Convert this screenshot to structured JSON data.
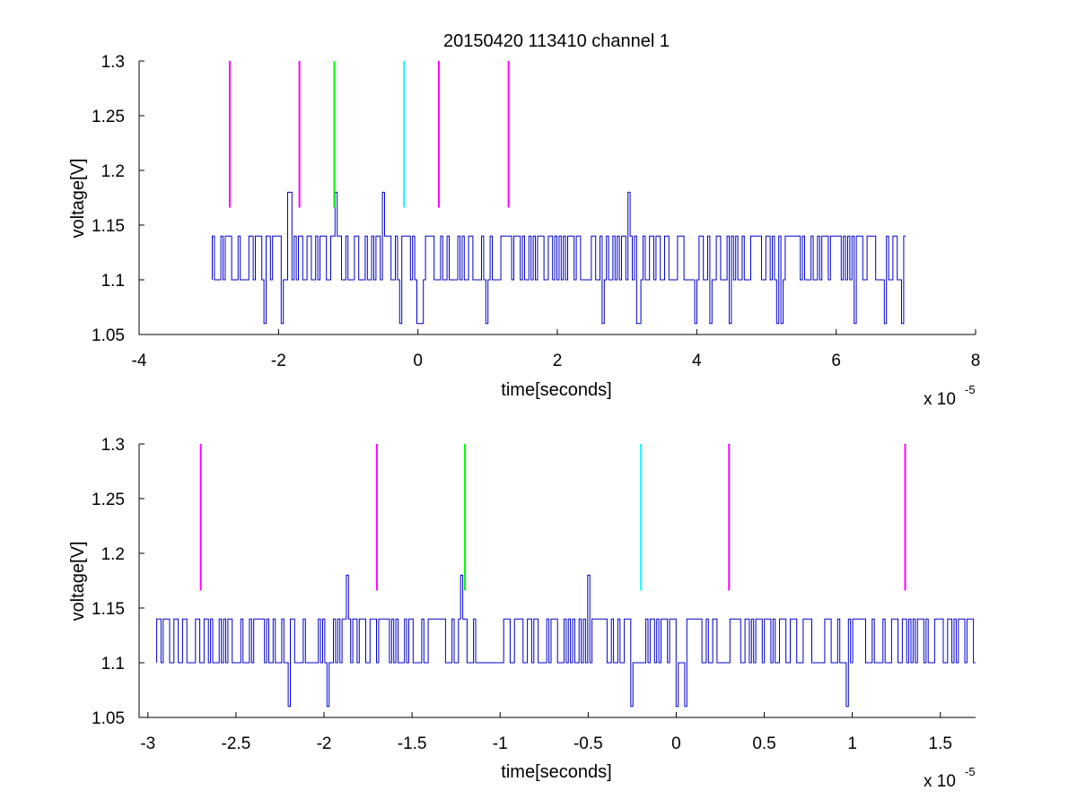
{
  "chart_data": [
    {
      "type": "line",
      "title": "20150420 113410 channel 1",
      "xlabel": "time[seconds]",
      "ylabel": "voltage[V]",
      "x_multiplier": "x 10",
      "x_exponent": "-5",
      "xlim": [
        -4,
        8
      ],
      "ylim": [
        1.05,
        1.3
      ],
      "xticks": [
        -4,
        -2,
        0,
        2,
        4,
        6,
        8
      ],
      "xtick_labels": [
        "-4",
        "-2",
        "0",
        "2",
        "4",
        "6",
        "8"
      ],
      "yticks": [
        1.05,
        1.1,
        1.15,
        1.2,
        1.25,
        1.3
      ],
      "ytick_labels": [
        "1.05",
        "1.1",
        "1.15",
        "1.2",
        "1.25",
        "1.3"
      ],
      "grid": false,
      "series": [
        {
          "color": "#0000cc",
          "x_range": [
            -2.95,
            7.0
          ],
          "levels": [
            1.06,
            1.1,
            1.14,
            1.18
          ],
          "spikes_up": [
            -1.85,
            -1.2,
            -0.5,
            3.02
          ],
          "dips": [
            -2.2,
            -1.97,
            -0.25,
            0.0,
            0.05,
            0.97,
            2.65,
            3.15,
            3.98,
            4.2,
            4.47,
            5.15,
            5.22,
            6.25,
            6.7,
            6.95
          ]
        }
      ],
      "markers": [
        {
          "x": -2.7,
          "y_range": [
            1.166,
            1.3
          ],
          "color": "#ff00ff"
        },
        {
          "x": -1.7,
          "y_range": [
            1.166,
            1.3
          ],
          "color": "#ff00ff"
        },
        {
          "x": -1.2,
          "y_range": [
            1.166,
            1.3
          ],
          "color": "#00ff00"
        },
        {
          "x": -0.2,
          "y_range": [
            1.166,
            1.3
          ],
          "color": "#00ffff"
        },
        {
          "x": 0.3,
          "y_range": [
            1.166,
            1.3
          ],
          "color": "#ff00ff"
        },
        {
          "x": 1.3,
          "y_range": [
            1.166,
            1.3
          ],
          "color": "#ff00ff"
        }
      ]
    },
    {
      "type": "line",
      "title": "",
      "xlabel": "time[seconds]",
      "ylabel": "voltage[V]",
      "x_multiplier": "x 10",
      "x_exponent": "-5",
      "xlim": [
        -3.05,
        1.7
      ],
      "ylim": [
        1.05,
        1.3
      ],
      "xticks": [
        -3,
        -2.5,
        -2,
        -1.5,
        -1,
        -0.5,
        0,
        0.5,
        1,
        1.5
      ],
      "xtick_labels": [
        "-3",
        "-2.5",
        "-2",
        "-1.5",
        "-1",
        "-0.5",
        "0",
        "0.5",
        "1",
        "1.5"
      ],
      "yticks": [
        1.05,
        1.1,
        1.15,
        1.2,
        1.25,
        1.3
      ],
      "ytick_labels": [
        "1.05",
        "1.1",
        "1.15",
        "1.2",
        "1.25",
        "1.3"
      ],
      "grid": false,
      "series": [
        {
          "color": "#0000cc",
          "x_range": [
            -2.95,
            1.7
          ],
          "levels": [
            1.06,
            1.1,
            1.14,
            1.18
          ],
          "spikes_up": [
            -1.87,
            -1.22,
            -0.5
          ],
          "dips": [
            -2.2,
            -1.98,
            -0.26,
            0.0,
            0.05,
            0.97
          ],
          "flat_segments": [
            [
              -1.15,
              -0.98
            ]
          ]
        }
      ],
      "markers": [
        {
          "x": -2.7,
          "y_range": [
            1.166,
            1.3
          ],
          "color": "#ff00ff"
        },
        {
          "x": -1.7,
          "y_range": [
            1.166,
            1.3
          ],
          "color": "#ff00ff"
        },
        {
          "x": -1.2,
          "y_range": [
            1.166,
            1.3
          ],
          "color": "#00ff00"
        },
        {
          "x": -0.2,
          "y_range": [
            1.166,
            1.3
          ],
          "color": "#00ffff"
        },
        {
          "x": 0.3,
          "y_range": [
            1.166,
            1.3
          ],
          "color": "#ff00ff"
        },
        {
          "x": 1.3,
          "y_range": [
            1.166,
            1.3
          ],
          "color": "#ff00ff"
        }
      ]
    }
  ]
}
